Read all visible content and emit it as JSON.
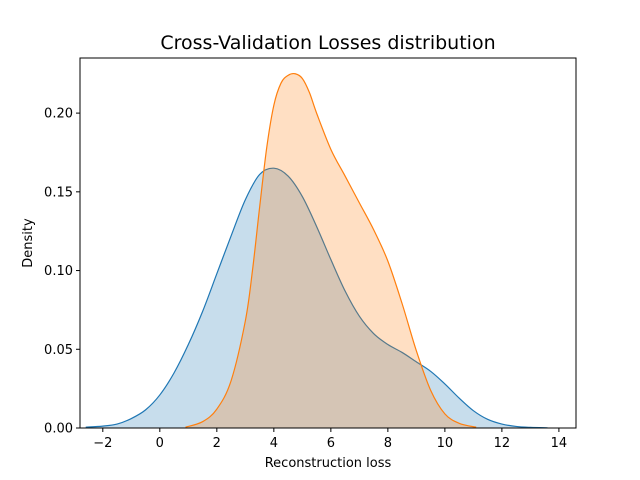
{
  "chart_data": {
    "type": "area",
    "title": "Cross-Validation Losses distribution",
    "xlabel": "Reconstruction loss",
    "ylabel": "Density",
    "xlim": [
      -2.8,
      14.6
    ],
    "ylim": [
      0,
      0.235
    ],
    "xticks": [
      -2,
      0,
      2,
      4,
      6,
      8,
      10,
      12,
      14
    ],
    "xtick_labels": [
      "−2",
      "0",
      "2",
      "4",
      "6",
      "8",
      "10",
      "12",
      "14"
    ],
    "yticks": [
      0,
      0.05,
      0.1,
      0.15,
      0.2
    ],
    "ytick_labels": [
      "0.00",
      "0.05",
      "0.10",
      "0.15",
      "0.20"
    ],
    "grid": false,
    "legend": "none",
    "series": [
      {
        "color": "#1f77b4",
        "x": [
          -2.6,
          -2,
          -1.5,
          -1,
          -0.5,
          0,
          0.5,
          1,
          1.5,
          2,
          2.5,
          3,
          3.5,
          4,
          4.5,
          5,
          5.5,
          6,
          6.5,
          7,
          7.5,
          8,
          8.5,
          9,
          9.5,
          10,
          10.5,
          11,
          11.5,
          12,
          12.5,
          13,
          13.6
        ],
        "y": [
          0.0005,
          0.0012,
          0.0025,
          0.006,
          0.0115,
          0.021,
          0.035,
          0.053,
          0.074,
          0.098,
          0.122,
          0.145,
          0.161,
          0.165,
          0.16,
          0.147,
          0.128,
          0.107,
          0.087,
          0.071,
          0.06,
          0.053,
          0.048,
          0.042,
          0.036,
          0.028,
          0.019,
          0.011,
          0.0055,
          0.0025,
          0.001,
          0.0004,
          0.0001
        ]
      },
      {
        "color": "#ff7f0e",
        "x": [
          0.9,
          1.5,
          2,
          2.5,
          3,
          3.25,
          3.5,
          3.75,
          4,
          4.25,
          4.5,
          4.75,
          5,
          5.25,
          5.5,
          6,
          6.5,
          7,
          7.5,
          8,
          8.5,
          9,
          9.5,
          10,
          10.5,
          11.1
        ],
        "y": [
          0.0005,
          0.004,
          0.012,
          0.03,
          0.068,
          0.1,
          0.14,
          0.178,
          0.205,
          0.219,
          0.224,
          0.225,
          0.222,
          0.213,
          0.2,
          0.177,
          0.16,
          0.143,
          0.126,
          0.106,
          0.079,
          0.049,
          0.024,
          0.009,
          0.003,
          0.0005
        ]
      }
    ]
  }
}
